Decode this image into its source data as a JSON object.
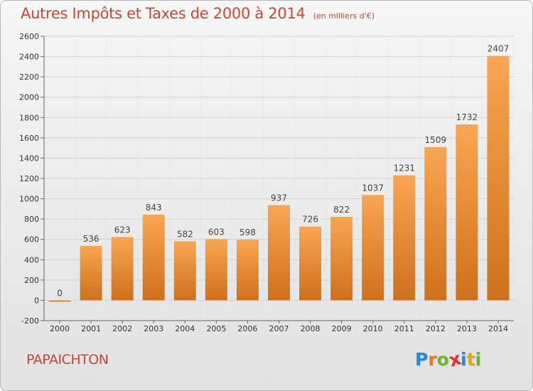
{
  "header": {
    "title": "Autres Impôts et Taxes de 2000 à 2014",
    "subtitle": "(en milliers d'€)"
  },
  "footer": {
    "commune": "PAPAICHTON",
    "logo_letters": [
      "P",
      "r",
      "o",
      "x",
      "i",
      "t",
      "i"
    ]
  },
  "colors": {
    "title": "#d1462e",
    "bar_light": "#f9a653",
    "bar_dark": "#d0701a",
    "grid": "#d3d3d3",
    "logo": [
      "#2e86d6",
      "#e77a1f",
      "#6fb52d",
      "#e2332b",
      "#2e86d6",
      "#e6a800",
      "#6fb52d"
    ]
  },
  "chart_data": {
    "type": "bar",
    "categories": [
      "2000",
      "2001",
      "2002",
      "2003",
      "2004",
      "2005",
      "2006",
      "2007",
      "2008",
      "2009",
      "2010",
      "2011",
      "2012",
      "2013",
      "2014"
    ],
    "values": [
      0,
      536,
      623,
      843,
      582,
      603,
      598,
      937,
      726,
      822,
      1037,
      1231,
      1509,
      1732,
      2407
    ],
    "ylim": [
      -200,
      2600
    ],
    "yticks": [
      -200,
      0,
      200,
      400,
      600,
      800,
      1000,
      1200,
      1400,
      1600,
      1800,
      2000,
      2200,
      2400,
      2600
    ],
    "grid": true,
    "xlabel": "",
    "ylabel": ""
  }
}
